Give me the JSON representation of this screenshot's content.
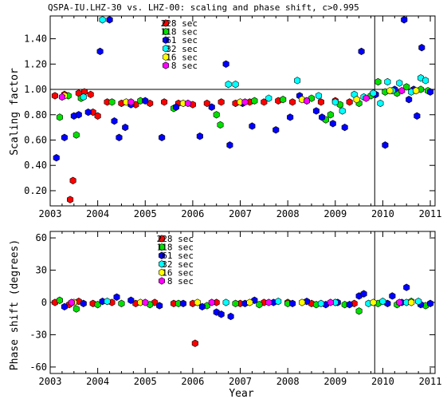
{
  "chart_data": [
    {
      "type": "scatter",
      "title": "QSPA-IU.LHZ-30 vs. LHZ-00: scaling and phase shift, c>0.995",
      "xlabel": "",
      "ylabel": "Scaling factor",
      "xlim": [
        2003.0,
        2011.1
      ],
      "ylim": [
        0.08,
        1.58
      ],
      "x_ticks": [
        "2003",
        "2004",
        "2005",
        "2006",
        "2007",
        "2008",
        "2009",
        "2010",
        "2011"
      ],
      "y_ticks": [
        "0.20",
        "0.40",
        "0.60",
        "0.80",
        "1.00",
        "1.20",
        "1.40"
      ],
      "y_tick_values": [
        0.2,
        0.4,
        0.6,
        0.8,
        1.0,
        1.2,
        1.4
      ],
      "reference_line_y": 1.0,
      "vertical_line_x": 2009.83,
      "legend": "top-left",
      "series": [
        {
          "name": "228 sec",
          "color": "#ff0000",
          "x": [
            2003.1,
            2003.3,
            2003.42,
            2003.48,
            2003.6,
            2003.72,
            2003.85,
            2003.9,
            2004.0,
            2004.2,
            2004.5,
            2004.8,
            2005.1,
            2005.4,
            2005.7,
            2006.0,
            2006.3,
            2006.6,
            2006.9,
            2007.2,
            2007.5,
            2007.8,
            2008.1,
            2008.4,
            2008.7,
            2009.0,
            2009.3
          ],
          "y": [
            0.95,
            0.96,
            0.13,
            0.28,
            0.97,
            0.98,
            0.96,
            0.82,
            0.79,
            0.9,
            0.89,
            0.88,
            0.89,
            0.9,
            0.89,
            0.88,
            0.89,
            0.9,
            0.89,
            0.9,
            0.9,
            0.91,
            0.9,
            0.91,
            0.9,
            0.91,
            0.9
          ]
        },
        {
          "name": "118 sec",
          "color": "#00e000",
          "x": [
            2003.2,
            2003.38,
            2003.55,
            2003.65,
            2004.3,
            2004.9,
            2005.6,
            2006.5,
            2006.58,
            2007.3,
            2007.9,
            2008.5,
            2008.8,
            2008.9,
            2009.1,
            2009.5,
            2009.75,
            2009.9,
            2010.05,
            2010.3,
            2010.5,
            2010.8,
            2010.95
          ],
          "y": [
            0.78,
            0.95,
            0.64,
            0.93,
            0.9,
            0.91,
            0.85,
            0.8,
            0.72,
            0.91,
            0.92,
            0.93,
            0.76,
            0.8,
            0.88,
            0.89,
            0.95,
            1.06,
            0.98,
            0.97,
            1.02,
            1.0,
            0.99
          ]
        },
        {
          "name": "61 sec",
          "color": "#0000ff",
          "x": [
            2003.13,
            2003.3,
            2003.5,
            2003.6,
            2003.8,
            2004.05,
            2004.25,
            2004.35,
            2004.45,
            2004.58,
            2004.7,
            2005.0,
            2005.35,
            2005.65,
            2006.15,
            2006.4,
            2006.7,
            2006.78,
            2007.05,
            2007.25,
            2007.75,
            2008.05,
            2008.25,
            2008.6,
            2008.72,
            2008.95,
            2009.2,
            2009.55,
            2009.85,
            2010.05,
            2010.25,
            2010.45,
            2010.55,
            2010.65,
            2010.72,
            2010.82,
            2011.0
          ],
          "y": [
            0.46,
            0.62,
            0.79,
            0.8,
            0.82,
            1.3,
            1.55,
            0.75,
            0.62,
            0.7,
            0.88,
            0.91,
            0.62,
            0.86,
            0.63,
            0.86,
            1.2,
            0.56,
            0.89,
            0.71,
            0.68,
            0.78,
            0.95,
            0.83,
            0.78,
            0.73,
            0.7,
            1.3,
            0.96,
            0.56,
            1.0,
            1.55,
            0.92,
            1.0,
            0.79,
            1.33,
            0.98
          ]
        },
        {
          "name": "32 sec",
          "color": "#00ffff",
          "x": [
            2003.7,
            2004.1,
            2006.75,
            2006.9,
            2007.6,
            2008.2,
            2008.65,
            2009.0,
            2009.15,
            2009.4,
            2009.6,
            2009.8,
            2009.95,
            2010.1,
            2010.2,
            2010.35,
            2010.6,
            2010.8,
            2010.9
          ],
          "y": [
            0.94,
            1.55,
            1.04,
            1.04,
            0.93,
            1.07,
            0.95,
            0.9,
            0.83,
            0.96,
            0.94,
            0.97,
            0.89,
            1.06,
            0.99,
            1.05,
            0.98,
            1.09,
            1.07
          ]
        },
        {
          "name": "16 sec",
          "color": "#ffff00",
          "x": [
            2003.3,
            2004.6,
            2005.8,
            2007.0,
            2008.3,
            2009.45,
            2010.15,
            2010.7
          ],
          "y": [
            0.95,
            0.9,
            0.89,
            0.9,
            0.92,
            0.92,
            0.99,
            0.99
          ]
        },
        {
          "name": "8 sec",
          "color": "#ff00ff",
          "x": [
            2003.25,
            2004.7,
            2005.9,
            2007.1,
            2008.4,
            2009.65,
            2010.4
          ],
          "y": [
            0.94,
            0.9,
            0.89,
            0.9,
            0.91,
            0.93,
            0.99
          ]
        }
      ]
    },
    {
      "type": "scatter",
      "title": "",
      "xlabel": "Year",
      "ylabel": "Phase shift (degrees)",
      "xlim": [
        2003.0,
        2011.1
      ],
      "ylim": [
        -66,
        66
      ],
      "x_ticks": [
        "2003",
        "2004",
        "2005",
        "2006",
        "2007",
        "2008",
        "2009",
        "2010",
        "2011"
      ],
      "y_ticks": [
        "-60",
        "-30",
        "0",
        "30",
        "60"
      ],
      "y_tick_values": [
        -60,
        -30,
        0,
        30,
        60
      ],
      "vertical_line_x": 2009.83,
      "legend": "top-left",
      "series": [
        {
          "name": "228 sec",
          "color": "#ff0000",
          "x": [
            2003.1,
            2003.4,
            2003.6,
            2003.9,
            2004.3,
            2004.8,
            2005.2,
            2005.6,
            2006.0,
            2006.05,
            2006.5,
            2007.0,
            2007.5,
            2008.0,
            2008.5,
            2009.0,
            2009.4
          ],
          "y": [
            0,
            -2,
            1,
            -1,
            0,
            -1,
            0,
            -1,
            -1,
            -38,
            0,
            -1,
            0,
            0,
            -1,
            0,
            -1
          ]
        },
        {
          "name": "118 sec",
          "color": "#00e000",
          "x": [
            2003.2,
            2003.55,
            2004.0,
            2004.5,
            2005.1,
            2005.7,
            2006.3,
            2006.9,
            2007.4,
            2008.0,
            2008.6,
            2009.2,
            2009.5,
            2009.9,
            2010.3,
            2010.6,
            2010.9
          ],
          "y": [
            2,
            -6,
            -2,
            -1,
            -2,
            -1,
            -3,
            -1,
            -2,
            -1,
            -2,
            -2,
            -8,
            -1,
            -2,
            1,
            -3
          ]
        },
        {
          "name": "61 sec",
          "color": "#0000ff",
          "x": [
            2003.3,
            2003.7,
            2004.1,
            2004.4,
            2004.7,
            2005.3,
            2005.8,
            2006.2,
            2006.5,
            2006.6,
            2006.8,
            2007.1,
            2007.3,
            2007.7,
            2008.1,
            2008.4,
            2008.8,
            2009.05,
            2009.3,
            2009.5,
            2009.6,
            2010.1,
            2010.2,
            2010.4,
            2010.5,
            2010.8,
            2011.0
          ],
          "y": [
            -4,
            -1,
            1,
            5,
            2,
            -3,
            -1,
            -4,
            -9,
            -11,
            -13,
            -1,
            2,
            0,
            -1,
            1,
            -2,
            0,
            -2,
            6,
            8,
            -1,
            6,
            0,
            14,
            -2,
            -1
          ]
        },
        {
          "name": "32 sec",
          "color": "#00ffff",
          "x": [
            2004.2,
            2006.7,
            2007.8,
            2008.7,
            2009.0,
            2009.7,
            2010.0,
            2010.5,
            2010.75
          ],
          "y": [
            1,
            0,
            1,
            -1,
            0,
            -1,
            1,
            0,
            1
          ]
        },
        {
          "name": "16 sec",
          "color": "#ffff00",
          "x": [
            2003.5,
            2004.9,
            2006.1,
            2007.2,
            2008.3,
            2009.8,
            2010.6
          ],
          "y": [
            0,
            0,
            0,
            0,
            0,
            0,
            0
          ]
        },
        {
          "name": "8 sec",
          "color": "#ff00ff",
          "x": [
            2003.45,
            2005.0,
            2006.4,
            2007.6,
            2008.9,
            2010.35
          ],
          "y": [
            0,
            0,
            0,
            0,
            0,
            0
          ]
        }
      ]
    }
  ]
}
